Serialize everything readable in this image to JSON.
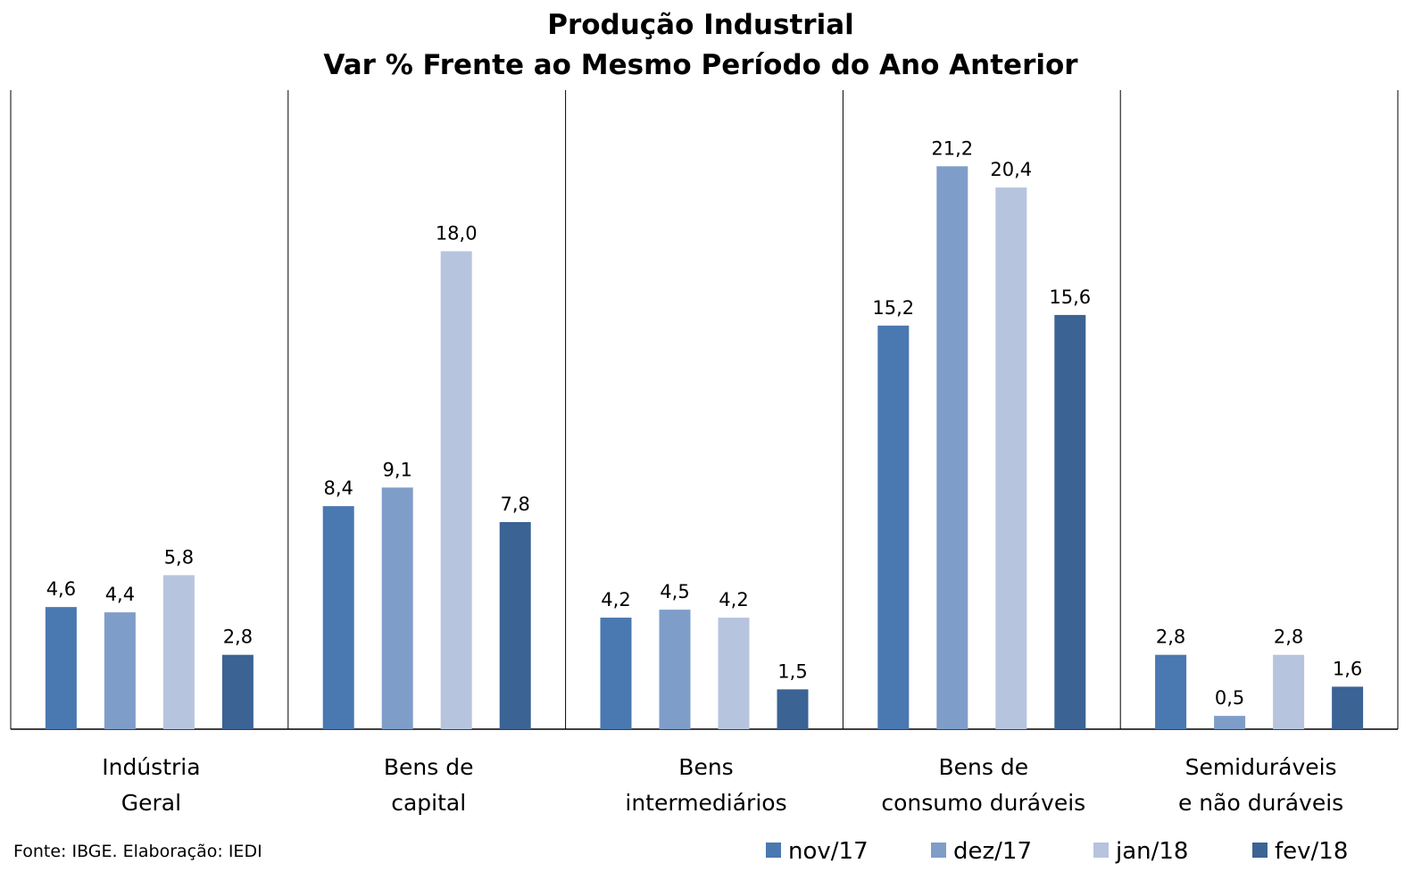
{
  "chart_data": {
    "type": "bar",
    "title": "Produção Industrial",
    "subtitle": "Var % Frente ao Mesmo Período do Ano Anterior",
    "categories": [
      [
        "Indústria",
        "Geral"
      ],
      [
        "Bens de",
        "capital"
      ],
      [
        "Bens",
        "intermediários"
      ],
      [
        "Bens de",
        "consumo duráveis"
      ],
      [
        "Semiduráveis",
        "e não duráveis"
      ]
    ],
    "series": [
      {
        "name": "nov/17",
        "color": "#4a78b0",
        "values": [
          4.6,
          8.4,
          4.2,
          15.2,
          2.8
        ],
        "labels": [
          "4,6",
          "8,4",
          "4,2",
          "15,2",
          "2,8"
        ]
      },
      {
        "name": "dez/17",
        "color": "#7f9dc9",
        "values": [
          4.4,
          9.1,
          4.5,
          21.2,
          0.5
        ],
        "labels": [
          "4,4",
          "9,1",
          "4,5",
          "21,2",
          "0,5"
        ]
      },
      {
        "name": "jan/18",
        "color": "#b6c4de",
        "values": [
          5.8,
          18.0,
          4.2,
          20.4,
          2.8
        ],
        "labels": [
          "5,8",
          "18,0",
          "4,2",
          "20,4",
          "2,8"
        ]
      },
      {
        "name": "fev/18",
        "color": "#3b6394",
        "values": [
          2.8,
          7.8,
          1.5,
          15.6,
          1.6
        ],
        "labels": [
          "2,8",
          "7,8",
          "1,5",
          "15,6",
          "1,6"
        ]
      }
    ],
    "ylim": [
      0,
      24
    ],
    "grid": false,
    "legend_position": "bottom-right",
    "source_note": "Fonte: IBGE. Elaboração: IEDI"
  }
}
